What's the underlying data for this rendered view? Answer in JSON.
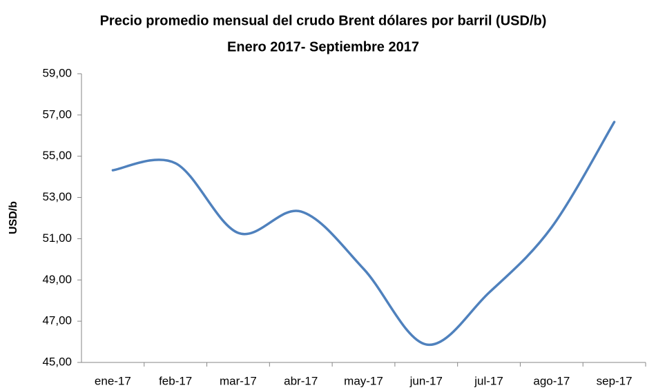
{
  "chart_data": {
    "type": "line",
    "title": "Precio promedio mensual del crudo Brent dólares por barril (USD/b)",
    "subtitle": "Enero 2017- Septiembre 2017",
    "y_label": "USD/b",
    "categories": [
      "ene-17",
      "feb-17",
      "mar-17",
      "abr-17",
      "may-17",
      "jun-17",
      "jul-17",
      "ago-17",
      "sep-17"
    ],
    "values": [
      54.32,
      54.66,
      51.28,
      52.32,
      49.54,
      45.87,
      48.38,
      51.55,
      56.66
    ],
    "color": "#4f81bd",
    "smooth": true,
    "ylim": [
      45,
      59
    ],
    "yticks": [
      {
        "value": 45,
        "label": "45,00"
      },
      {
        "value": 47,
        "label": "47,00"
      },
      {
        "value": 49,
        "label": "49,00"
      },
      {
        "value": 51,
        "label": "51,00"
      },
      {
        "value": 53,
        "label": "53,00"
      },
      {
        "value": 55,
        "label": "55,00"
      },
      {
        "value": 57,
        "label": "57,00"
      },
      {
        "value": 59,
        "label": "59,00"
      }
    ],
    "grid": false
  }
}
